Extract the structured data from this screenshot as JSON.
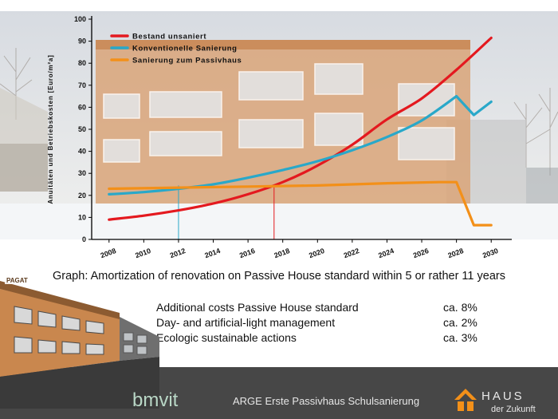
{
  "caption": "Graph: Amortization of renovation on Passive House standard within 5 or rather 11 years",
  "cost_items": [
    {
      "label": "Additional costs Passive House standard",
      "value": "ca. 8%"
    },
    {
      "label": "Day- and artificial-light management",
      "value": "ca. 2%"
    },
    {
      "label": "Ecologic sustainable actions",
      "value": "ca. 3%"
    }
  ],
  "footer": {
    "title": "ARGE Erste Passivhaus Schulsanierung",
    "logo_left": "bmvit",
    "logo_right_line1": "HAUS",
    "logo_right_line2": "der Zukunft",
    "bldg_sign": "PAGAT"
  },
  "colors": {
    "bestand": "#e4191f",
    "konventionell": "#29a8c9",
    "passivhaus": "#f39019",
    "footer_bg": "#474747",
    "building_orange": "#c9874e"
  },
  "chart_data": {
    "type": "line",
    "ylabel": "Anuitäten und Betriebskosten [Euro/m²a]",
    "xlabel": "",
    "ylim": [
      0,
      100
    ],
    "xlim": [
      2007,
      2031
    ],
    "yticks": [
      "0",
      "10",
      "20",
      "30",
      "40",
      "50",
      "60",
      "70",
      "80",
      "90",
      "100"
    ],
    "xticks": [
      "2008",
      "2010",
      "2012",
      "2014",
      "2016",
      "2018",
      "2020",
      "2022",
      "2024",
      "2026",
      "2028",
      "2030"
    ],
    "grid": false,
    "legend_position": "top-left",
    "series": [
      {
        "name": "Bestand unsaniert",
        "color": "#e4191f",
        "x": [
          2008,
          2010,
          2012,
          2014,
          2016,
          2018,
          2020,
          2022,
          2024,
          2026,
          2028,
          2030
        ],
        "y": [
          9,
          10.8,
          13.2,
          16.3,
          20.5,
          26,
          33.5,
          43,
          54.5,
          64,
          77,
          91.5
        ]
      },
      {
        "name": "Konventionelle Sanierung",
        "color": "#29a8c9",
        "x": [
          2008,
          2010,
          2012,
          2014,
          2016,
          2018,
          2020,
          2022,
          2024,
          2026,
          2028,
          2029,
          2030
        ],
        "y": [
          20.5,
          21.5,
          23,
          25,
          28,
          31.5,
          35.5,
          40.5,
          46.5,
          54,
          65,
          56.5,
          62.5
        ]
      },
      {
        "name": "Sanierung zum Passivhaus",
        "color": "#f39019",
        "x": [
          2008,
          2012,
          2016,
          2020,
          2024,
          2027,
          2028,
          2029,
          2030
        ],
        "y": [
          23,
          23.5,
          24,
          24.5,
          25.5,
          26,
          26,
          6.5,
          6.5
        ]
      }
    ],
    "markers": [
      {
        "x": 2012,
        "color": "#29a8c9"
      },
      {
        "x": 2017.5,
        "color": "#e4191f"
      }
    ]
  }
}
